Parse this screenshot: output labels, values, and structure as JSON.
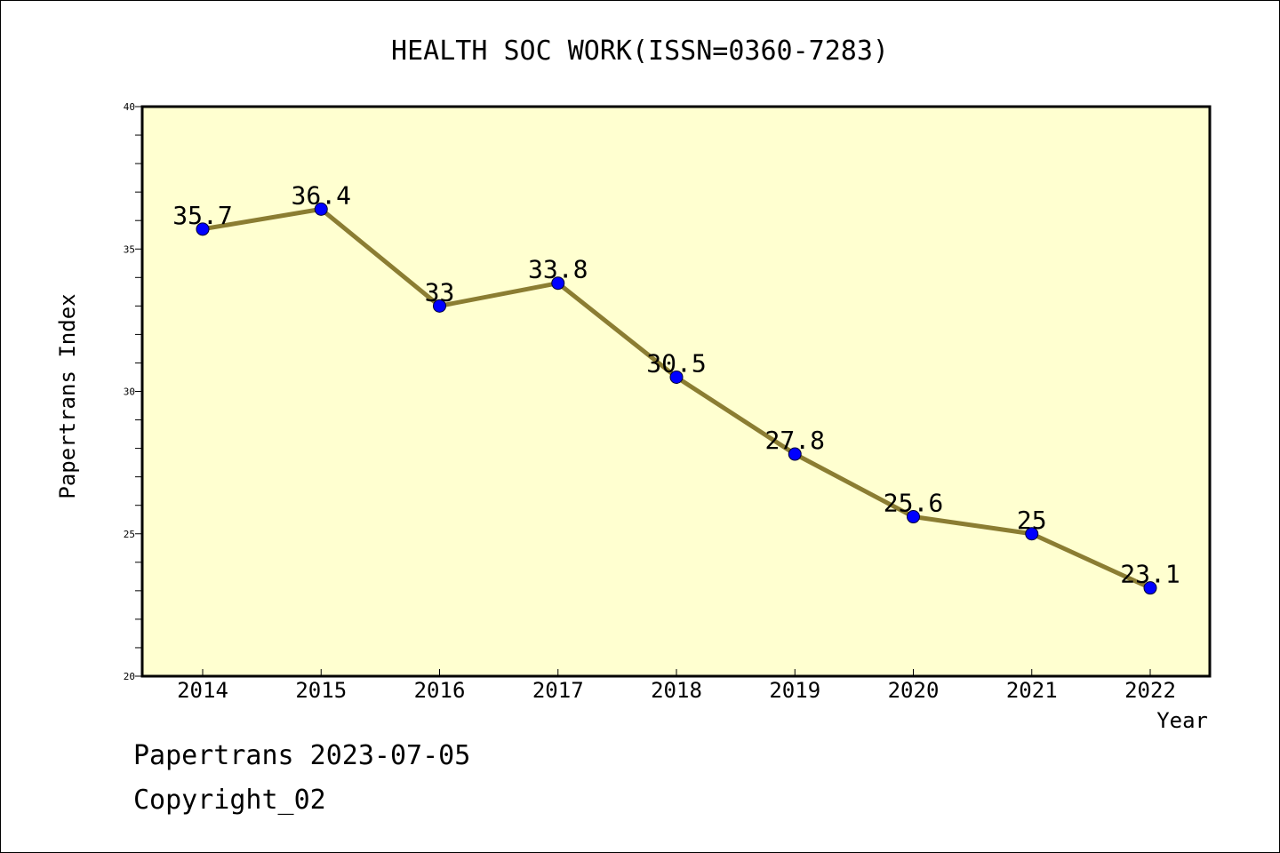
{
  "chart_data": {
    "type": "line",
    "title": "HEALTH SOC WORK(ISSN=0360-7283)",
    "xlabel": "Year",
    "ylabel": "Papertrans Index",
    "categories": [
      "2014",
      "2015",
      "2016",
      "2017",
      "2018",
      "2019",
      "2020",
      "2021",
      "2022"
    ],
    "series": [
      {
        "values": [
          35.7,
          36.4,
          33,
          33.8,
          30.5,
          27.8,
          25.6,
          25,
          23.1
        ]
      }
    ],
    "data_labels": [
      "35.7",
      "36.4",
      "33",
      "33.8",
      "30.5",
      "27.8",
      "25.6",
      "25",
      "23.1"
    ],
    "ylim": [
      20,
      40
    ],
    "y_major_ticks": [
      20,
      25,
      30,
      35,
      40
    ],
    "y_minor_step": 1,
    "grid": false,
    "legend": "none",
    "colors": {
      "plot_background": "#ffffd0",
      "line": "#8b7d32",
      "marker": "#0000ff"
    }
  },
  "footer": {
    "line1": "Papertrans 2023-07-05",
    "line2": "Copyright_02"
  }
}
